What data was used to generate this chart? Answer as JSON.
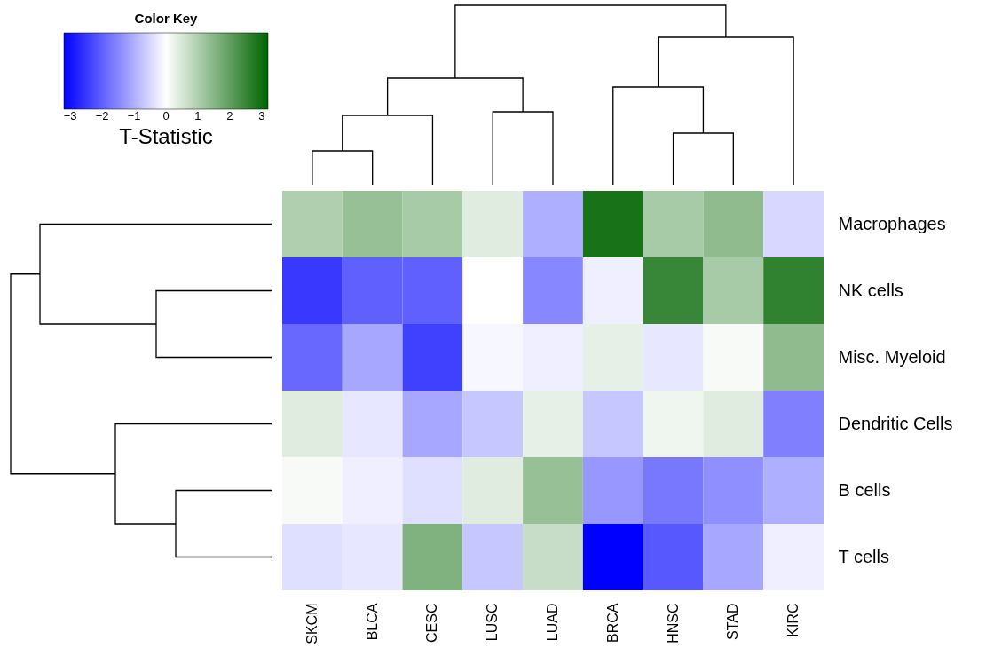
{
  "chart_data": {
    "type": "heatmap",
    "categories": [
      "SKCM",
      "BLCA",
      "CESC",
      "LUSC",
      "LUAD",
      "BRCA",
      "HNSC",
      "STAD",
      "KIRC"
    ],
    "y_categories": [
      "Macrophages",
      "NK cells",
      "Misc. Myeloid",
      "Dendritic Cells",
      "B cells",
      "T cells"
    ],
    "cells": [
      [
        1.0,
        1.3,
        1.1,
        0.4,
        -1.0,
        2.9,
        1.1,
        1.4,
        -0.5
      ],
      [
        -2.5,
        -2.0,
        -2.0,
        0.0,
        -1.5,
        -0.2,
        2.5,
        1.1,
        2.6
      ],
      [
        -1.9,
        -1.1,
        -2.4,
        -0.1,
        -0.2,
        0.3,
        -0.3,
        0.1,
        1.4
      ],
      [
        0.4,
        -0.3,
        -1.1,
        -0.7,
        0.3,
        -0.7,
        0.2,
        0.4,
        -1.6
      ],
      [
        0.1,
        -0.2,
        -0.4,
        0.4,
        1.3,
        -1.3,
        -1.7,
        -1.4,
        -1.0
      ],
      [
        -0.4,
        -0.3,
        1.6,
        -0.7,
        0.7,
        -3.2,
        -2.1,
        -1.1,
        -0.2
      ]
    ],
    "clim": [
      -3.2,
      3.2
    ],
    "cticks": [
      -3,
      -2,
      -1,
      0,
      1,
      2,
      3
    ],
    "clabel": "T-Statistic",
    "legend_title": "Color Key"
  }
}
